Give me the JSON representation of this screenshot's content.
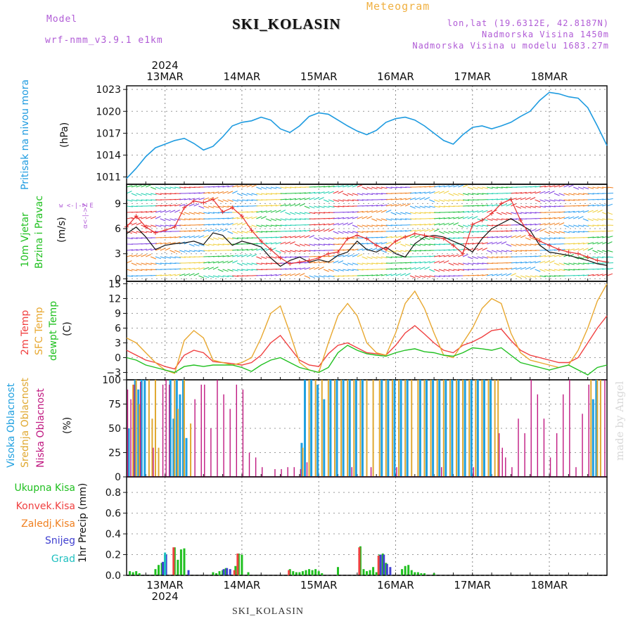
{
  "header": {
    "model_label": "Model",
    "model_name": "wrf-nmm_v3.9.1 e1km",
    "meteogram_label": "Meteogram",
    "station": "SKI_KOLASIN",
    "lonlat": "lon,lat (19.6312E, 42.8187N)",
    "altitude": "Nadmorska Visina 1450m",
    "model_altitude": "Nadmorska Visina u modelu 1683.27m"
  },
  "footer": {
    "station": "SKI_KOLASIN",
    "watermark": "made by Angel"
  },
  "time_axis": {
    "year": "2024",
    "days": [
      "13MAR",
      "14MAR",
      "15MAR",
      "16MAR",
      "17MAR",
      "18MAR"
    ]
  },
  "panel_labels": {
    "pressure": {
      "name": "Pritisak na nivou mora",
      "unit": "(hPa)"
    },
    "wind": {
      "name1": "10m Vjetar",
      "name2": "Brzina i Pravac",
      "unit": "(m/s)",
      "compass": "w <-|-> E",
      "compass_v": "α<-|->Z"
    },
    "temp": {
      "t2m": "2m Temp",
      "sfc": "SFC Temp",
      "dew": "dewpt Temp",
      "unit": "(C)"
    },
    "cloud": {
      "high": "Visoka Oblacnost",
      "mid": "Srednja Oblacnost",
      "low": "Niska Oblacnost",
      "unit": "(%)"
    },
    "precip": {
      "total": "Ukupna Kisa",
      "conv": "Konvek.Kisa",
      "frz": "Zaledj.Kisa",
      "snow": "Snijeg",
      "grad": "Grad",
      "unit": "1hr Precip (mm)"
    }
  },
  "colors": {
    "pressure": "#1e9be0",
    "t2m": "#f04040",
    "sfc": "#e8a830",
    "dew": "#20c020",
    "cloud_high": "#20a0e0",
    "cloud_mid": "#e0a830",
    "cloud_low": "#c01880",
    "precip_total": "#20c020",
    "precip_conv": "#f04040",
    "precip_frz": "#f08020",
    "precip_snow": "#4040d0",
    "precip_grad": "#20c0c0",
    "label_purple": "#b05bd6"
  },
  "chart_data": [
    {
      "type": "line",
      "name": "pressure",
      "yticks": [
        1011,
        1014,
        1017,
        1020,
        1023
      ],
      "ylim": [
        1010,
        1023.5
      ],
      "x": [
        0,
        3,
        6,
        9,
        12,
        15,
        18,
        21,
        24,
        27,
        30,
        33,
        36,
        39,
        42,
        45,
        48,
        51,
        54,
        57,
        60,
        63,
        66,
        69,
        72,
        75,
        78,
        81,
        84,
        87,
        90,
        93,
        96,
        99,
        102,
        105,
        108,
        111,
        114,
        117,
        120,
        123,
        126,
        129,
        132,
        135,
        138,
        141,
        144,
        147,
        150
      ],
      "series": [
        {
          "values": [
            1010.8,
            1012.2,
            1013.8,
            1015.0,
            1015.5,
            1016.0,
            1016.3,
            1015.6,
            1014.7,
            1015.2,
            1016.5,
            1018.0,
            1018.5,
            1018.7,
            1019.2,
            1018.8,
            1017.6,
            1017.1,
            1018.0,
            1019.3,
            1019.8,
            1019.6,
            1018.8,
            1018.0,
            1017.3,
            1016.8,
            1017.4,
            1018.5,
            1019.0,
            1019.2,
            1018.8,
            1018.0,
            1017.0,
            1016.0,
            1015.5,
            1016.8,
            1017.8,
            1018.0,
            1017.6,
            1018.0,
            1018.5,
            1019.3,
            1020.0,
            1021.5,
            1022.6,
            1022.4,
            1022.0,
            1021.8,
            1020.5,
            1018.0,
            1015.3
          ]
        }
      ]
    },
    {
      "type": "line",
      "name": "wind speed",
      "yticks": [
        0,
        3,
        6,
        9
      ],
      "ylim": [
        -0.3,
        11.3
      ],
      "x": [
        0,
        3,
        6,
        9,
        12,
        15,
        18,
        21,
        24,
        27,
        30,
        33,
        36,
        39,
        42,
        45,
        48,
        51,
        54,
        57,
        60,
        63,
        66,
        69,
        72,
        75,
        78,
        81,
        84,
        87,
        90,
        93,
        96,
        99,
        102,
        105,
        108,
        111,
        114,
        117,
        120,
        123,
        126,
        129,
        132,
        135,
        138,
        141,
        144,
        147,
        150
      ],
      "series": [
        {
          "values": [
            5.4,
            6.2,
            5.0,
            3.5,
            4.0,
            4.2,
            4.3,
            4.5,
            4.1,
            5.5,
            5.2,
            4.0,
            4.5,
            4.2,
            3.8,
            2.5,
            1.5,
            2.2,
            2.6,
            2.0,
            2.3,
            2.0,
            2.8,
            3.2,
            4.5,
            3.5,
            3.2,
            3.8,
            3.0,
            2.6,
            4.2,
            5.0,
            5.2,
            5.0,
            4.5,
            4.0,
            3.2,
            4.8,
            6.0,
            6.6,
            7.2,
            6.5,
            5.8,
            4.0,
            3.2,
            3.0,
            2.8,
            2.5,
            2.2,
            1.8,
            1.6
          ]
        },
        {
          "values": [
            6.2,
            7.5,
            6.2,
            5.5,
            5.8,
            6.2,
            8.5,
            9.3,
            9.1,
            9.5,
            8.0,
            8.5,
            7.5,
            5.8,
            4.5,
            3.5,
            2.5,
            1.8,
            2.0,
            2.2,
            2.5,
            3.0,
            3.2,
            4.8,
            5.2,
            4.8,
            4.0,
            3.5,
            4.5,
            5.0,
            5.4,
            5.2,
            5.0,
            4.8,
            4.0,
            3.0,
            6.5,
            7.0,
            7.8,
            9.0,
            9.5,
            7.0,
            5.2,
            4.5,
            4.0,
            3.5,
            3.2,
            3.0,
            2.6,
            2.2,
            2.0
          ]
        }
      ]
    },
    {
      "type": "line",
      "name": "temperature",
      "yticks": [
        -3,
        0,
        3,
        6,
        9,
        12,
        15
      ],
      "ylim": [
        -4.5,
        15.5
      ],
      "x": [
        0,
        3,
        6,
        9,
        12,
        15,
        18,
        21,
        24,
        27,
        30,
        33,
        36,
        39,
        42,
        45,
        48,
        51,
        54,
        57,
        60,
        63,
        66,
        69,
        72,
        75,
        78,
        81,
        84,
        87,
        90,
        93,
        96,
        99,
        102,
        105,
        108,
        111,
        114,
        117,
        120,
        123,
        126,
        129,
        132,
        135,
        138,
        141,
        144,
        147,
        150
      ],
      "series": [
        {
          "name": "2m Temp",
          "values": [
            1.5,
            0.5,
            -0.5,
            -1.0,
            -1.8,
            -2.3,
            0.5,
            1.5,
            1.0,
            -0.8,
            -1.0,
            -1.2,
            -1.5,
            -1.0,
            0.5,
            3.0,
            4.5,
            2.0,
            -0.5,
            -1.5,
            -1.8,
            0.8,
            2.5,
            3.0,
            2.0,
            1.0,
            0.8,
            0.5,
            2.5,
            5.0,
            6.5,
            4.8,
            3.0,
            1.5,
            1.0,
            2.5,
            3.2,
            4.2,
            5.5,
            5.8,
            3.5,
            1.5,
            0.5,
            0.0,
            -0.5,
            -1.0,
            -1.0,
            0.0,
            3.0,
            6.0,
            8.5
          ]
        },
        {
          "name": "SFC Temp",
          "values": [
            4.0,
            3.0,
            1.0,
            -1.0,
            -2.5,
            -3.2,
            3.5,
            5.5,
            4.0,
            -0.5,
            -1.0,
            -1.5,
            -1.0,
            0.0,
            4.0,
            9.0,
            10.5,
            5.0,
            -1.0,
            -2.5,
            -3.0,
            3.0,
            8.5,
            11.0,
            8.5,
            3.0,
            1.0,
            0.5,
            5.0,
            11.0,
            13.5,
            10.0,
            5.0,
            0.5,
            0.0,
            3.0,
            6.0,
            10.0,
            12.0,
            11.0,
            5.0,
            1.0,
            -0.5,
            -1.0,
            -1.5,
            -2.0,
            -1.5,
            1.5,
            6.0,
            11.5,
            15.0
          ]
        },
        {
          "name": "dewpt Temp",
          "values": [
            0.0,
            -0.5,
            -1.5,
            -2.0,
            -2.5,
            -3.0,
            -1.8,
            -1.5,
            -1.8,
            -1.5,
            -1.5,
            -1.5,
            -2.0,
            -2.8,
            -1.5,
            -0.5,
            0.0,
            -1.0,
            -2.0,
            -2.5,
            -3.0,
            -2.0,
            1.0,
            2.5,
            1.5,
            0.8,
            0.5,
            0.3,
            1.0,
            1.5,
            1.8,
            1.2,
            1.0,
            0.5,
            0.3,
            1.0,
            2.0,
            1.8,
            1.5,
            2.0,
            0.5,
            -1.0,
            -1.5,
            -2.0,
            -2.5,
            -2.0,
            -1.5,
            -2.5,
            -3.5,
            -2.0,
            -1.5
          ]
        }
      ]
    },
    {
      "type": "bar",
      "name": "cloud cover",
      "yticks": [
        0,
        25,
        50,
        75,
        100
      ],
      "ylim": [
        0,
        100
      ],
      "series": [
        {
          "name": "Visoka Oblacnost",
          "x": [
            1,
            3,
            4,
            5,
            6,
            14,
            15,
            16,
            17,
            18,
            19,
            55,
            56,
            58,
            60,
            62,
            64,
            66,
            68,
            70,
            72,
            74,
            80,
            82,
            84,
            86,
            88,
            92,
            94,
            96,
            98,
            100,
            102,
            104,
            106,
            108,
            110,
            112,
            114,
            146,
            147
          ],
          "values": [
            50,
            100,
            90,
            100,
            100,
            100,
            60,
            100,
            85,
            100,
            40,
            35,
            100,
            100,
            95,
            80,
            100,
            100,
            100,
            100,
            100,
            100,
            100,
            100,
            100,
            100,
            100,
            100,
            100,
            100,
            100,
            100,
            100,
            100,
            100,
            100,
            100,
            100,
            100,
            80,
            100
          ]
        },
        {
          "name": "Srednja Oblacnost",
          "x": [
            2,
            3,
            4,
            7,
            8,
            9,
            10,
            15,
            16,
            18,
            20,
            55,
            57,
            59,
            61,
            63,
            65,
            67,
            69,
            71,
            73,
            75,
            77,
            79,
            81,
            83,
            85,
            87,
            89,
            91,
            93,
            95,
            97,
            99,
            101,
            103,
            105,
            107,
            109,
            111,
            113,
            115,
            116,
            145,
            147,
            148
          ],
          "values": [
            95,
            100,
            75,
            100,
            60,
            100,
            30,
            100,
            70,
            100,
            55,
            30,
            100,
            100,
            100,
            100,
            100,
            100,
            100,
            100,
            100,
            100,
            100,
            100,
            100,
            100,
            100,
            100,
            100,
            100,
            100,
            100,
            100,
            100,
            100,
            100,
            100,
            100,
            100,
            100,
            100,
            100,
            100,
            100,
            100,
            100
          ]
        },
        {
          "name": "Niska Oblacnost",
          "x": [
            0,
            1,
            2,
            4,
            8,
            11,
            12,
            13,
            21,
            23,
            24,
            26,
            28,
            30,
            32,
            34,
            36,
            38,
            40,
            42,
            46,
            48,
            50,
            52,
            54,
            56,
            70,
            76,
            84,
            98,
            108,
            116,
            117,
            118,
            120,
            122,
            124,
            126,
            128,
            130,
            132,
            134,
            136,
            138,
            140,
            142,
            144,
            149
          ],
          "values": [
            90,
            80,
            95,
            98,
            30,
            95,
            100,
            95,
            80,
            95,
            95,
            50,
            100,
            85,
            70,
            95,
            90,
            25,
            20,
            10,
            8,
            8,
            10,
            10,
            8,
            15,
            10,
            10,
            10,
            10,
            10,
            45,
            30,
            20,
            10,
            60,
            45,
            100,
            85,
            60,
            20,
            45,
            85,
            100,
            10,
            65,
            95,
            100
          ]
        }
      ]
    },
    {
      "type": "bar",
      "name": "precipitation",
      "yticks": [
        0.0,
        0.2,
        0.4,
        0.6,
        0.8
      ],
      "ylim": [
        0,
        0.95
      ],
      "series": [
        {
          "name": "Ukupna Kisa",
          "x": [
            1,
            2,
            3,
            4,
            9,
            10,
            11,
            12,
            15,
            16,
            17,
            18,
            27,
            28,
            29,
            30,
            31,
            34,
            35,
            36,
            38,
            51,
            52,
            53,
            54,
            55,
            56,
            57,
            58,
            59,
            60,
            61,
            66,
            73,
            74,
            75,
            76,
            77,
            78,
            79,
            80,
            81,
            86,
            87,
            88,
            89,
            90,
            91,
            92,
            93,
            96
          ],
          "values": [
            0.04,
            0.03,
            0.04,
            0.02,
            0.06,
            0.1,
            0.12,
            0.2,
            0.27,
            0.15,
            0.25,
            0.26,
            0.03,
            0.02,
            0.04,
            0.05,
            0.07,
            0.09,
            0.21,
            0.2,
            0.03,
            0.06,
            0.04,
            0.03,
            0.03,
            0.04,
            0.05,
            0.06,
            0.05,
            0.06,
            0.04,
            0.02,
            0.08,
            0.28,
            0.06,
            0.04,
            0.05,
            0.08,
            0.03,
            0.2,
            0.21,
            0.12,
            0.06,
            0.09,
            0.1,
            0.05,
            0.03,
            0.03,
            0.02,
            0.02,
            0.02
          ]
        },
        {
          "name": "Konvek.Kisa",
          "x": [
            15,
            34,
            35,
            51,
            73,
            79
          ],
          "values": [
            0.27,
            0.05,
            0.21,
            0.05,
            0.27,
            0.19
          ]
        },
        {
          "name": "Snijeg",
          "x": [
            11,
            12,
            19,
            30,
            31,
            32,
            79,
            80,
            81,
            82
          ],
          "values": [
            0.13,
            0.2,
            0.05,
            0.06,
            0.07,
            0.06,
            0.2,
            0.2,
            0.11,
            0.08
          ]
        },
        {
          "name": "Grad",
          "x": [
            12
          ],
          "values": [
            0.22
          ]
        }
      ]
    }
  ]
}
